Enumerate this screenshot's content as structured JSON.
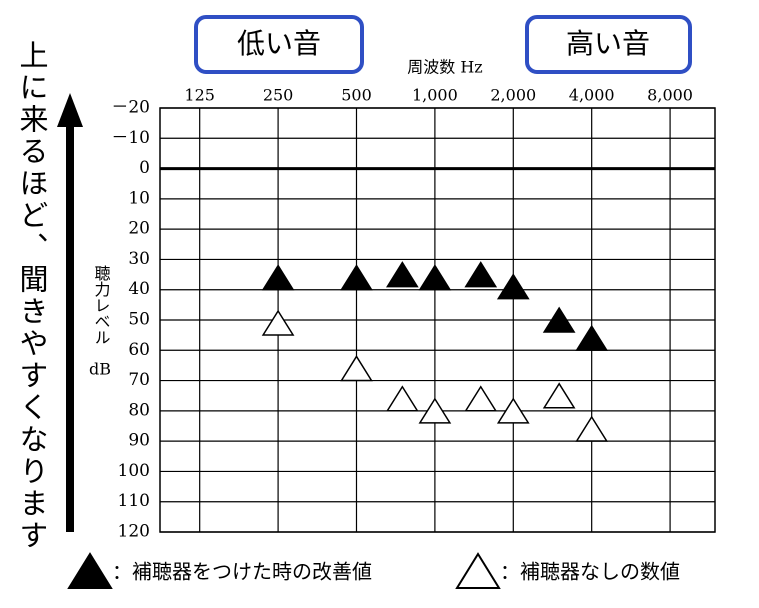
{
  "chart_data": {
    "type": "scatter",
    "annotations": [
      "低い音",
      "高い音"
    ],
    "xlabel": "周波数 Hz",
    "ylabel": "聴力レベル",
    "ylabel_unit": "dB",
    "side_note": "上に来るほど、聞きやすくなります",
    "xscale": "log",
    "xlim": [
      88,
      11900
    ],
    "xticks": [
      125,
      250,
      500,
      {
        "value": 1000,
        "label": "1,000"
      },
      {
        "value": 2000,
        "label": "2,000"
      },
      {
        "value": 4000,
        "label": "4,000"
      },
      {
        "value": 8000,
        "label": "8,000"
      }
    ],
    "ylim": [
      120,
      -20
    ],
    "yticks": [
      {
        "value": -20,
        "label": "－20"
      },
      {
        "value": -10,
        "label": "－10"
      },
      0,
      10,
      20,
      30,
      40,
      50,
      60,
      70,
      80,
      90,
      100,
      110,
      120
    ],
    "hline": 0,
    "grid": true,
    "series": [
      {
        "name": "：補聴器をつけた時の改善値",
        "color": "#000000",
        "filled": true,
        "x": [
          250,
          500,
          750,
          1000,
          1500,
          2000,
          3000,
          4000
        ],
        "values": [
          36,
          36,
          35,
          36,
          35,
          39,
          50,
          56
        ]
      },
      {
        "name": "：補聴器なしの数値",
        "color": "#000000",
        "filled": false,
        "x": [
          250,
          500,
          750,
          1000,
          1500,
          2000,
          3000,
          4000
        ],
        "values": [
          51,
          66,
          76,
          80,
          76,
          80,
          75,
          86
        ]
      }
    ]
  }
}
